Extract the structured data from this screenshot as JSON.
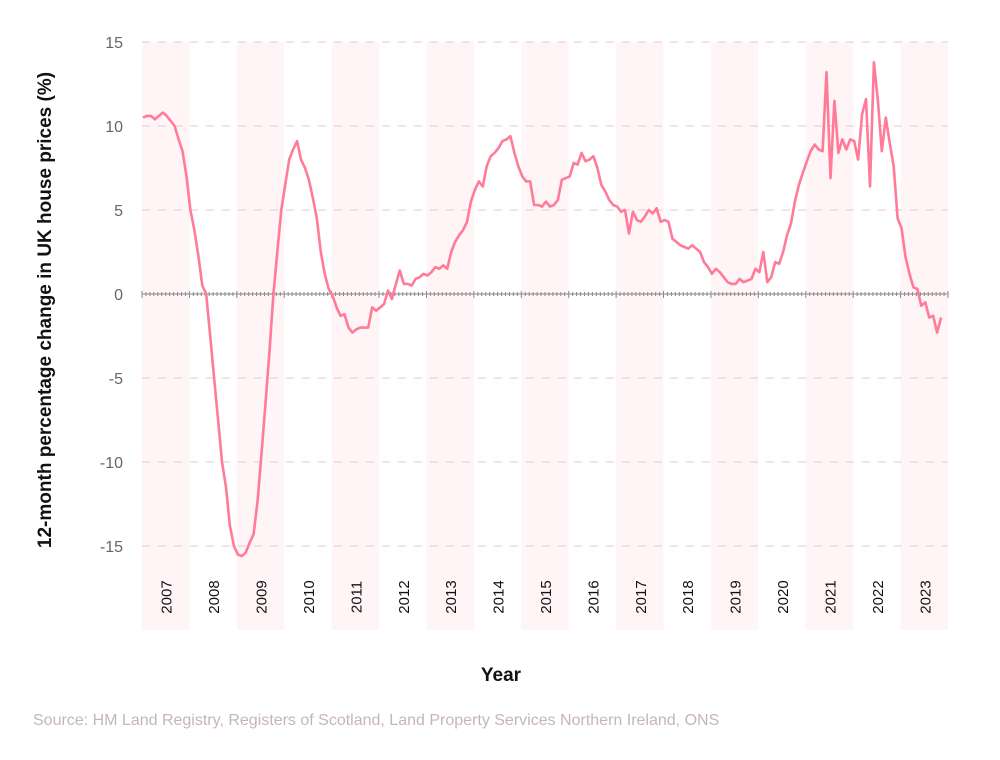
{
  "chart_data": {
    "type": "line",
    "title": "",
    "xlabel": "Year",
    "ylabel": "12-month percentage change in UK house prices (%)",
    "ylim": [
      -18,
      15
    ],
    "yticks": [
      15,
      10,
      5,
      0,
      -5,
      -10,
      -15
    ],
    "categories": [
      "2007",
      "2008",
      "2009",
      "2010",
      "2011",
      "2012",
      "2013",
      "2014",
      "2015",
      "2016",
      "2017",
      "2018",
      "2019",
      "2020",
      "2021",
      "2022",
      "2023"
    ],
    "grid": true,
    "alternating_year_bands": true,
    "colors": {
      "line": "#ff7b97",
      "band": "#fff4f6",
      "grid": "#e6d3d8",
      "zero_line": "#888888"
    },
    "monthly_values": [
      {
        "year": "2007",
        "values": [
          10.5,
          10.6,
          10.6,
          10.4,
          10.6,
          10.8,
          10.6,
          10.3,
          10.0,
          9.2,
          8.5,
          7.0
        ]
      },
      {
        "year": "2008",
        "values": [
          5.0,
          3.8,
          2.3,
          0.5,
          0.0,
          -2.5,
          -5.0,
          -7.5,
          -10.0,
          -11.5,
          -13.8,
          -15.0
        ]
      },
      {
        "year": "2009",
        "values": [
          -15.5,
          -15.6,
          -15.4,
          -14.8,
          -14.3,
          -12.3,
          -9.5,
          -6.5,
          -3.5,
          0.0,
          2.5,
          5.0
        ]
      },
      {
        "year": "2010",
        "values": [
          6.5,
          8.0,
          8.6,
          9.1,
          8.0,
          7.5,
          6.8,
          5.7,
          4.5,
          2.5,
          1.2,
          0.3
        ]
      },
      {
        "year": "2011",
        "values": [
          -0.1,
          -0.8,
          -1.3,
          -1.2,
          -2.0,
          -2.3,
          -2.1,
          -2.0,
          -2.0,
          -2.0,
          -0.8,
          -1.0
        ]
      },
      {
        "year": "2012",
        "values": [
          -0.8,
          -0.6,
          0.2,
          -0.3,
          0.6,
          1.4,
          0.6,
          0.6,
          0.5,
          0.9,
          1.0,
          1.2
        ]
      },
      {
        "year": "2013",
        "values": [
          1.1,
          1.3,
          1.6,
          1.5,
          1.7,
          1.5,
          2.5,
          3.1,
          3.5,
          3.8,
          4.3,
          5.5
        ]
      },
      {
        "year": "2014",
        "values": [
          6.2,
          6.7,
          6.4,
          7.6,
          8.2,
          8.4,
          8.7,
          9.1,
          9.2,
          9.4,
          8.4,
          7.6
        ]
      },
      {
        "year": "2015",
        "values": [
          7.0,
          6.7,
          6.7,
          5.3,
          5.3,
          5.2,
          5.5,
          5.2,
          5.3,
          5.6,
          6.8,
          6.9
        ]
      },
      {
        "year": "2016",
        "values": [
          7.0,
          7.8,
          7.7,
          8.4,
          7.9,
          8.0,
          8.2,
          7.5,
          6.5,
          6.1,
          5.6,
          5.3
        ]
      },
      {
        "year": "2017",
        "values": [
          5.2,
          4.9,
          5.0,
          3.6,
          4.9,
          4.4,
          4.3,
          4.6,
          5.0,
          4.8,
          5.1,
          4.3
        ]
      },
      {
        "year": "2018",
        "values": [
          4.4,
          4.3,
          3.3,
          3.1,
          2.9,
          2.8,
          2.7,
          2.9,
          2.7,
          2.5,
          1.9,
          1.6
        ]
      },
      {
        "year": "2019",
        "values": [
          1.2,
          1.5,
          1.3,
          1.0,
          0.7,
          0.6,
          0.6,
          0.9,
          0.7,
          0.8,
          0.9,
          1.5
        ]
      },
      {
        "year": "2020",
        "values": [
          1.3,
          2.5,
          0.7,
          1.0,
          1.9,
          1.8,
          2.5,
          3.5,
          4.2,
          5.5,
          6.5,
          7.2
        ]
      },
      {
        "year": "2021",
        "values": [
          7.9,
          8.5,
          8.9,
          8.6,
          8.5,
          13.2,
          6.9,
          11.5,
          8.4,
          9.2,
          8.6,
          9.2
        ]
      },
      {
        "year": "2022",
        "values": [
          9.1,
          8.0,
          10.7,
          11.6,
          6.4,
          13.8,
          11.5,
          8.5,
          10.5,
          9.0,
          7.6,
          4.5
        ]
      },
      {
        "year": "2023",
        "values": [
          3.9,
          2.2,
          1.2,
          0.4,
          0.3,
          -0.7,
          -0.5,
          -1.4,
          -1.3,
          -2.3,
          -1.4
        ]
      }
    ]
  },
  "source": "Source: HM Land Registry, Registers of Scotland, Land Property Services Northern Ireland, ONS"
}
